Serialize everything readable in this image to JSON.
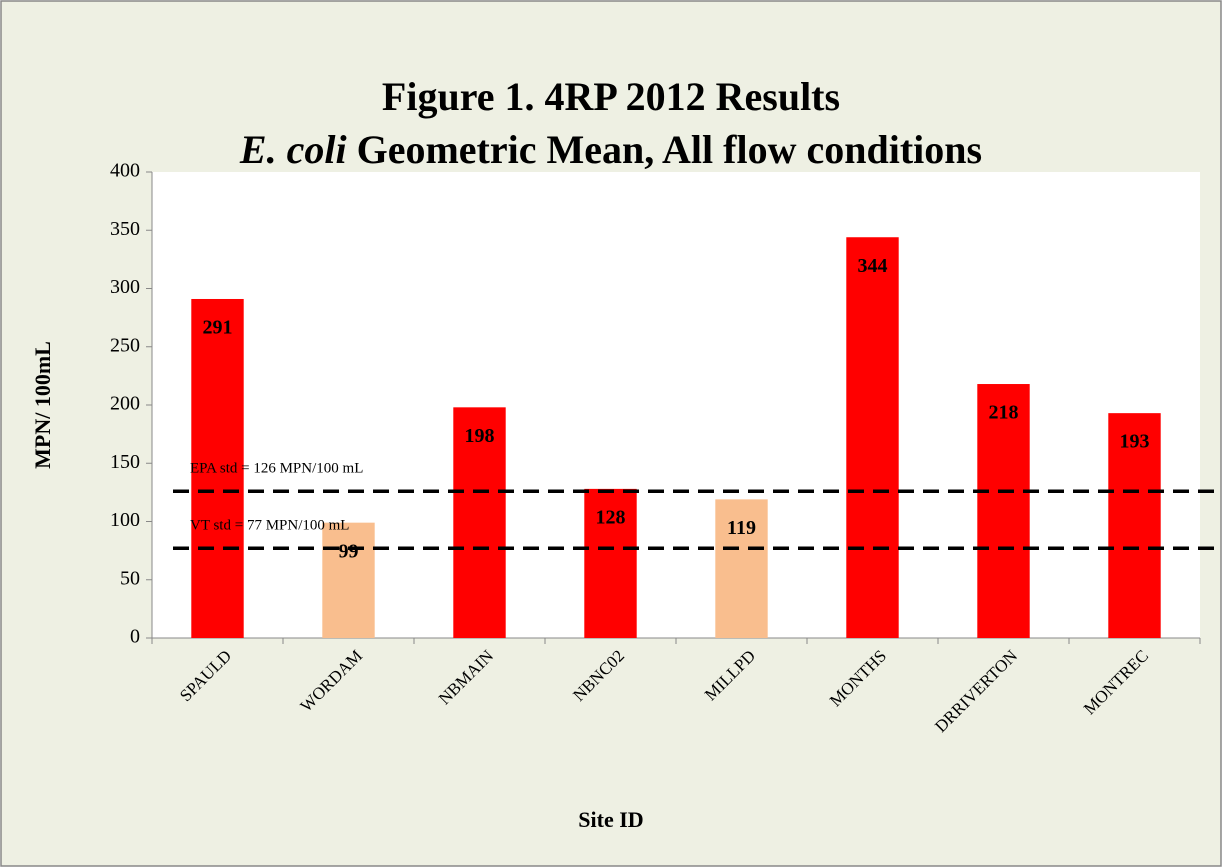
{
  "chart_data": {
    "type": "bar",
    "title": "Figure 1. 4RP 2012 Results",
    "subtitle": [
      {
        "text": "E. coli",
        "italic": true
      },
      {
        "text": "Geometric Mean, All flow conditions",
        "italic": false
      }
    ],
    "x_label": "Site ID",
    "y_label": "MPN/ 100mL",
    "categories": [
      "SPAULD",
      "WORDAM",
      "NBMAIN",
      "NBNC02",
      "MILLPD",
      "MONTHS",
      "DRRIVERTON",
      "MONTREC"
    ],
    "values": [
      291,
      99,
      198,
      128,
      119,
      344,
      218,
      193
    ],
    "colors": [
      "#ff0000",
      "#f9be8e",
      "#ff0000",
      "#ff0000",
      "#f9be8e",
      "#ff0000",
      "#ff0000",
      "#ff0000"
    ],
    "ylim": [
      0,
      400
    ],
    "yticks": [
      0,
      50,
      100,
      150,
      200,
      250,
      300,
      350,
      400
    ],
    "reference_lines": [
      {
        "value": 126,
        "label": "EPA std = 126 MPN/100 mL"
      },
      {
        "value": 77,
        "label": "VT std = 77 MPN/100 mL"
      }
    ]
  }
}
